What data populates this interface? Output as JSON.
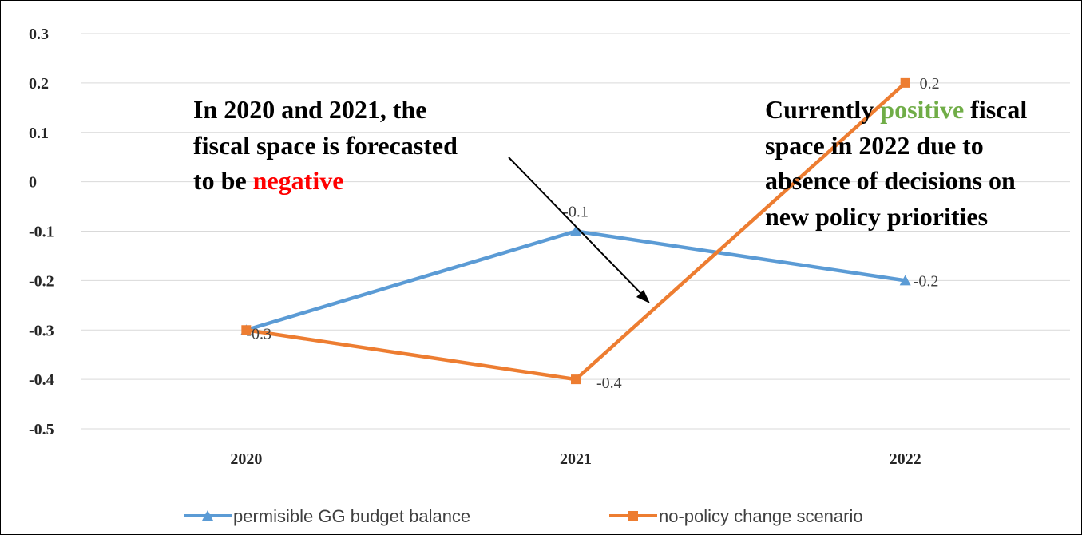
{
  "chart_data": {
    "type": "line",
    "categories": [
      "2020",
      "2021",
      "2022"
    ],
    "ylim": [
      -0.5,
      0.3
    ],
    "yticks": [
      "0.3",
      "0.2",
      "0.1",
      "0",
      "-0.1",
      "-0.2",
      "-0.3",
      "-0.4",
      "-0.5"
    ],
    "ytick_values": [
      0.3,
      0.2,
      0.1,
      0,
      -0.1,
      -0.2,
      -0.3,
      -0.4,
      -0.5
    ],
    "grid": true,
    "legend_placement": "bottom",
    "series": [
      {
        "name": "permisible GG budget balance",
        "values": [
          -0.3,
          -0.1,
          -0.2
        ],
        "labels": [
          "",
          "-0.1",
          "-0.2"
        ],
        "color": "#5B9BD5",
        "marker": "triangle"
      },
      {
        "name": "no-policy change scenario",
        "values": [
          -0.3,
          -0.4,
          0.2
        ],
        "labels": [
          "-0.3",
          "-0.4",
          "0.2"
        ],
        "color": "#ED7D31",
        "marker": "square"
      }
    ],
    "annotations": {
      "left": {
        "line1": "In 2020 and 2021, the",
        "line2": "fiscal space is forecasted",
        "line3_prefix": "to be ",
        "line3_highlight": "negative",
        "highlight_color": "#FF0000"
      },
      "right": {
        "line1_prefix": "Currently ",
        "line1_highlight": "positive",
        "line1_suffix": " fiscal",
        "line2": "space in 2022 due to",
        "line3": "absence of decisions on",
        "line4": "new policy priorities",
        "highlight_color": "#70AD47"
      }
    }
  }
}
